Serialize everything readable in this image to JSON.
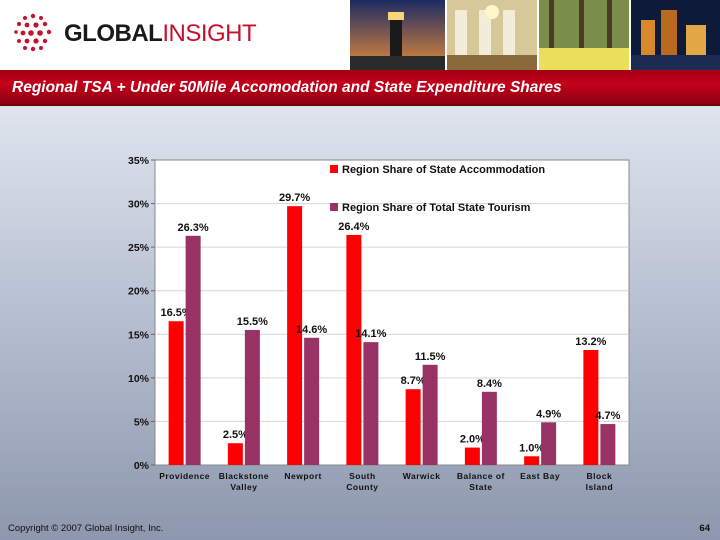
{
  "header": {
    "logo_part1": "GLOBAL",
    "logo_part2": "INSIGHT",
    "title": "Regional TSA + Under 50Mile Accomodation and State Expenditure Shares"
  },
  "footer": {
    "copyright": "Copyright © 2007 Global Insight, Inc.",
    "page_number": "64"
  },
  "colors": {
    "accommodation": "#ff0000",
    "tourism": "#993366",
    "title_bar": "#b80018"
  },
  "chart_data": {
    "type": "bar",
    "categories": [
      [
        "Providence"
      ],
      [
        "Blackstone",
        "Valley"
      ],
      [
        "Newport"
      ],
      [
        "South",
        "County"
      ],
      [
        "Warwick"
      ],
      [
        "Balance of",
        "State"
      ],
      [
        "East Bay"
      ],
      [
        "Block",
        "Island"
      ]
    ],
    "series": [
      {
        "name": "Region Share of State Accommodation",
        "values": [
          16.5,
          2.5,
          29.7,
          26.4,
          8.7,
          2.0,
          1.0,
          13.2
        ],
        "labels": [
          "16.5%",
          "2.5%",
          "29.7%",
          "26.4%",
          "8.7%",
          "2.0%",
          "1.0%",
          "13.2%"
        ]
      },
      {
        "name": "Region Share of Total State Tourism",
        "values": [
          26.3,
          15.5,
          14.6,
          14.1,
          11.5,
          8.4,
          4.9,
          4.7
        ],
        "labels": [
          "26.3%",
          "15.5%",
          "14.6%",
          "14.1%",
          "11.5%",
          "8.4%",
          "4.9%",
          "4.7%"
        ]
      }
    ],
    "yticks": [
      "0%",
      "5%",
      "10%",
      "15%",
      "20%",
      "25%",
      "30%",
      "35%"
    ],
    "ylim": [
      0,
      35
    ],
    "grid": true,
    "legend_position": "top-right"
  }
}
